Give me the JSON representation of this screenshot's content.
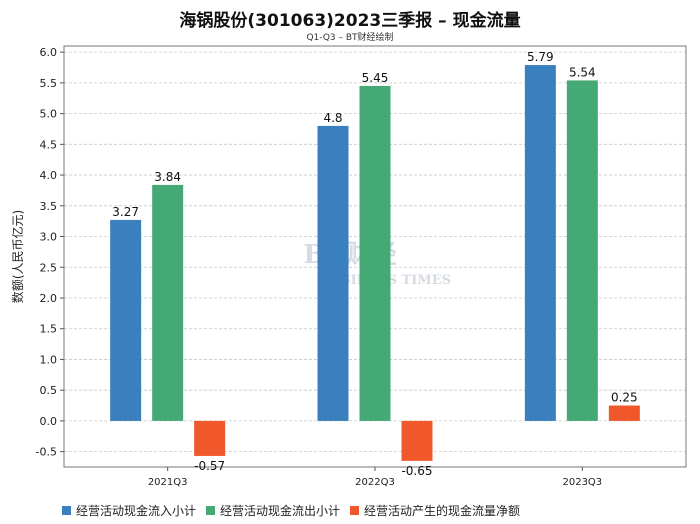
{
  "chart_data": {
    "type": "bar",
    "title": "海锅股份(301063)2023三季报 – 现金流量",
    "subtitle": "Q1-Q3 – BT财经绘制",
    "ylabel": "数额(人民币亿元)",
    "xlabel": "",
    "categories": [
      "2021Q3",
      "2022Q3",
      "2023Q3"
    ],
    "ylim": [
      -0.75,
      6.1
    ],
    "yticks": [
      6.0,
      5.5,
      5.0,
      4.5,
      4.0,
      3.5,
      3.0,
      2.5,
      2.0,
      1.5,
      1.0,
      0.5,
      0.0,
      -0.5
    ],
    "ytick_labels": [
      "6.0",
      "5.5",
      "5.0",
      "4.5",
      "4.0",
      "3.5",
      "3.0",
      "2.5",
      "2.0",
      "1.5",
      "1.0",
      "0.5",
      "0.0",
      "-0.5"
    ],
    "grid": true,
    "legend_position": "bottom",
    "watermark": "BT财经 BUSINESS TIMES",
    "series": [
      {
        "name": "经营活动现金流入小计",
        "color": "#3a7fbe",
        "values": [
          3.27,
          4.8,
          5.79
        ],
        "labels": [
          "3.27",
          "4.8",
          "5.79"
        ]
      },
      {
        "name": "经营活动现金流出小计",
        "color": "#45a975",
        "values": [
          3.84,
          5.45,
          5.54
        ],
        "labels": [
          "3.84",
          "5.45",
          "5.54"
        ]
      },
      {
        "name": "经营活动产生的现金流量净额",
        "color": "#f0572a",
        "values": [
          -0.57,
          -0.65,
          0.25
        ],
        "labels": [
          "-0.57",
          "-0.65",
          "0.25"
        ]
      }
    ]
  }
}
